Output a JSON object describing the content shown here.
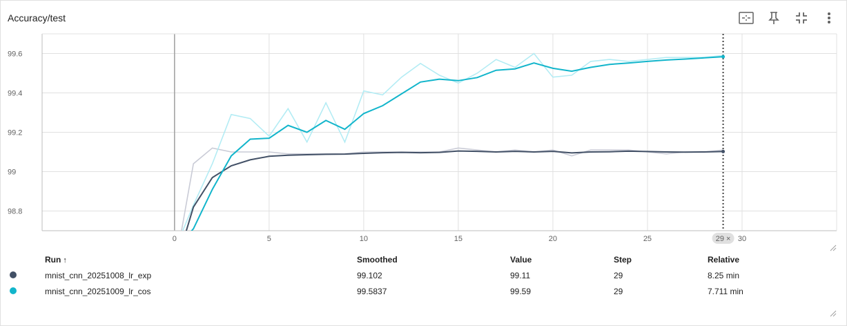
{
  "header": {
    "title": "Accuracy/test"
  },
  "toolbar": {
    "icons": [
      "fit-domain-icon",
      "pin-icon",
      "collapse-icon",
      "more-vert-icon"
    ]
  },
  "chart_data": {
    "type": "line",
    "title": "Accuracy/test",
    "xlabel": "",
    "ylabel": "",
    "xlim": [
      -7,
      35
    ],
    "ylim": [
      98.7,
      99.7
    ],
    "x_ticks": [
      0,
      5,
      10,
      15,
      20,
      25,
      30
    ],
    "y_ticks": [
      98.8,
      99,
      99.2,
      99.4,
      99.6
    ],
    "y_tick_labels": [
      "98.8",
      "99",
      "99.2",
      "99.4",
      "99.6"
    ],
    "grid": true,
    "hover_step": 29,
    "hover_badge": "29 ×",
    "x": [
      0,
      1,
      2,
      3,
      4,
      5,
      6,
      7,
      8,
      9,
      10,
      11,
      12,
      13,
      14,
      15,
      16,
      17,
      18,
      19,
      20,
      21,
      22,
      23,
      24,
      25,
      26,
      27,
      28,
      29
    ],
    "series": [
      {
        "name": "mnist_cnn_20251008_lr_exp",
        "color": "#425066",
        "raw_color": "#c9cbd6",
        "raw": [
          98.5,
          99.04,
          99.12,
          99.1,
          99.1,
          99.1,
          99.09,
          99.09,
          99.09,
          99.09,
          99.1,
          99.1,
          99.1,
          99.1,
          99.1,
          99.12,
          99.11,
          99.1,
          99.11,
          99.1,
          99.11,
          99.08,
          99.11,
          99.11,
          99.11,
          99.1,
          99.09,
          99.1,
          99.1,
          99.11
        ],
        "smoothed": [
          98.5,
          98.82,
          98.97,
          99.03,
          99.06,
          99.078,
          99.083,
          99.086,
          99.088,
          99.089,
          99.093,
          99.096,
          99.098,
          99.096,
          99.098,
          99.105,
          99.103,
          99.1,
          99.103,
          99.1,
          99.103,
          99.095,
          99.1,
          99.101,
          99.104,
          99.102,
          99.1,
          99.099,
          99.1,
          99.102
        ]
      },
      {
        "name": "mnist_cnn_20251009_lr_cos",
        "color": "#12b5cb",
        "raw_color": "#b3ecf4",
        "raw": [
          98.6,
          98.83,
          99.04,
          99.29,
          99.27,
          99.18,
          99.32,
          99.15,
          99.35,
          99.15,
          99.41,
          99.39,
          99.48,
          99.55,
          99.49,
          99.45,
          99.5,
          99.57,
          99.53,
          99.6,
          99.48,
          99.49,
          99.56,
          99.57,
          99.56,
          99.57,
          99.58,
          99.58,
          99.58,
          99.59
        ],
        "smoothed": [
          98.6,
          98.71,
          98.91,
          99.08,
          99.165,
          99.17,
          99.235,
          99.2,
          99.26,
          99.215,
          99.295,
          99.335,
          99.395,
          99.455,
          99.47,
          99.462,
          99.478,
          99.515,
          99.522,
          99.552,
          99.525,
          99.51,
          99.53,
          99.545,
          99.552,
          99.56,
          99.567,
          99.572,
          99.578,
          99.5837
        ]
      }
    ]
  },
  "table": {
    "headers": {
      "run": "Run",
      "sort_arrow": "↑",
      "smoothed": "Smoothed",
      "value": "Value",
      "step": "Step",
      "relative": "Relative"
    },
    "rows": [
      {
        "color": "#425066",
        "run": "mnist_cnn_20251008_lr_exp",
        "smoothed": "99.102",
        "value": "99.11",
        "step": "29",
        "relative": "8.25 min"
      },
      {
        "color": "#12b5cb",
        "run": "mnist_cnn_20251009_lr_cos",
        "smoothed": "99.5837",
        "value": "99.59",
        "step": "29",
        "relative": "7.711 min"
      }
    ]
  }
}
